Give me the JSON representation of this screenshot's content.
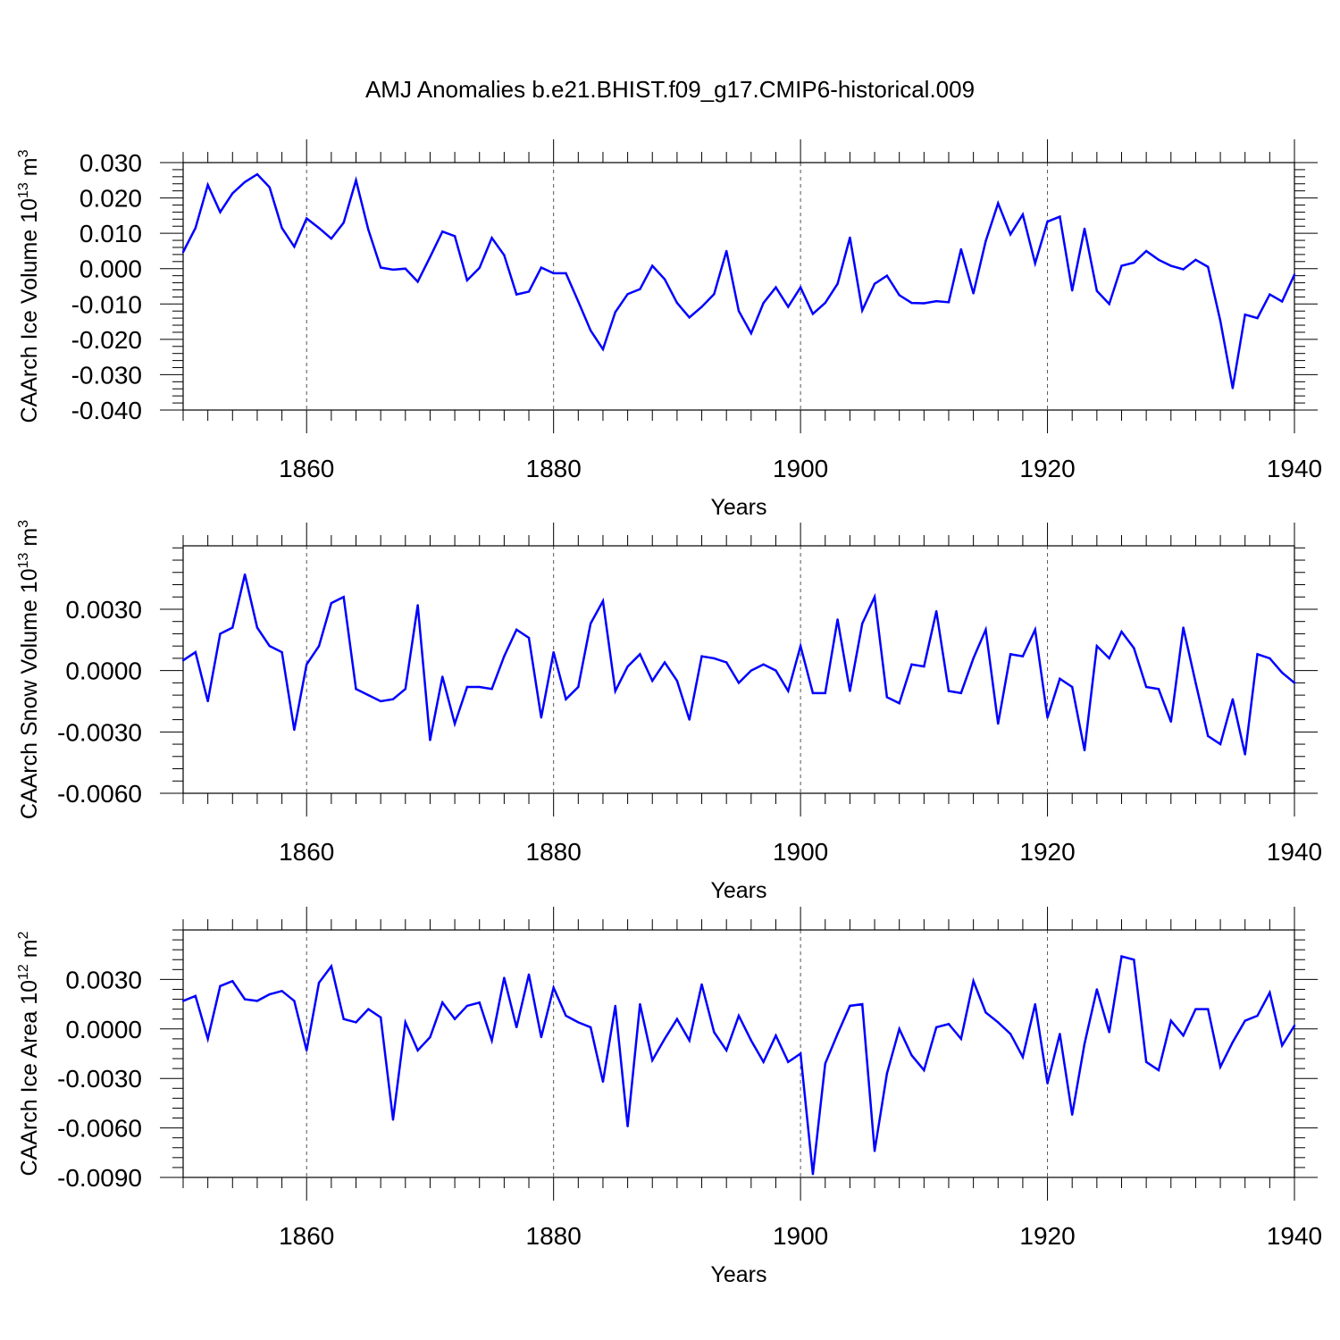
{
  "title": "AMJ Anomalies b.e21.BHIST.f09_g17.CMIP6-historical.009",
  "chart_data": [
    {
      "type": "line",
      "ylabel": "CAArch Ice Volume 10",
      "ylabel_exp": "13",
      "ylabel_unit": " m",
      "ylabel_unit_exp": "3",
      "xlabel": "Years",
      "xlim": [
        1850,
        1940
      ],
      "ylim": [
        -0.04,
        0.03
      ],
      "yticks": [
        "0.030",
        "0.020",
        "0.010",
        "0.000",
        "-0.010",
        "-0.020",
        "-0.030",
        "-0.040"
      ],
      "ytick_values": [
        0.03,
        0.02,
        0.01,
        0.0,
        -0.01,
        -0.02,
        -0.03,
        -0.04
      ],
      "xticks": [
        "1860",
        "1880",
        "1900",
        "1920",
        "1940"
      ],
      "xtick_values": [
        1860,
        1880,
        1900,
        1920,
        1940
      ],
      "grid_x": [
        1860,
        1880,
        1900,
        1920
      ],
      "series": [
        {
          "color": "#0000ff",
          "x_start": 1850,
          "values": [
            0.0047,
            0.0115,
            0.0237,
            0.016,
            0.0213,
            0.0245,
            0.0267,
            0.023,
            0.0115,
            0.0062,
            0.0142,
            0.0115,
            0.0085,
            0.013,
            0.025,
            0.011,
            0.0003,
            -0.0003,
            0.0,
            -0.0037,
            0.0033,
            0.0105,
            0.0092,
            -0.0033,
            0.0002,
            0.0087,
            0.0038,
            -0.0073,
            -0.0065,
            0.0003,
            -0.0013,
            -0.0013,
            -0.0093,
            -0.0175,
            -0.0228,
            -0.0123,
            -0.0072,
            -0.0058,
            0.0008,
            -0.003,
            -0.0097,
            -0.0138,
            -0.0108,
            -0.0072,
            0.005,
            -0.012,
            -0.0183,
            -0.0097,
            -0.0053,
            -0.0108,
            -0.0053,
            -0.0128,
            -0.0097,
            -0.0043,
            0.0088,
            -0.0118,
            -0.0043,
            -0.002,
            -0.0075,
            -0.0097,
            -0.0098,
            -0.0092,
            -0.0095,
            0.0055,
            -0.007,
            0.0078,
            0.0185,
            0.0097,
            0.0153,
            0.0015,
            0.0133,
            0.0147,
            -0.0062,
            0.0113,
            -0.0063,
            -0.01,
            0.0008,
            0.0017,
            0.005,
            0.0025,
            0.0008,
            -0.0002,
            0.0025,
            0.0005,
            -0.0148,
            -0.0338,
            -0.013,
            -0.014,
            -0.0073,
            -0.0093,
            -0.0017
          ]
        }
      ]
    },
    {
      "type": "line",
      "ylabel": "CAArch Snow Volume 10",
      "ylabel_exp": "13",
      "ylabel_unit": " m",
      "ylabel_unit_exp": "3",
      "xlabel": "Years",
      "xlim": [
        1850,
        1940
      ],
      "ylim": [
        -0.006,
        0.0061
      ],
      "yticks": [
        "0.0030",
        "0.0000",
        "-0.0030",
        "-0.0060"
      ],
      "ytick_values": [
        0.003,
        0.0,
        -0.003,
        -0.006
      ],
      "xticks": [
        "1860",
        "1880",
        "1900",
        "1920",
        "1940"
      ],
      "xtick_values": [
        1860,
        1880,
        1900,
        1920,
        1940
      ],
      "grid_x": [
        1860,
        1880,
        1900,
        1920
      ],
      "series": [
        {
          "color": "#0000ff",
          "x_start": 1850,
          "values": [
            0.0005,
            0.0009,
            -0.0015,
            0.0018,
            0.0021,
            0.0047,
            0.0021,
            0.0012,
            0.0009,
            -0.0029,
            0.0003,
            0.0012,
            0.0033,
            0.0036,
            -0.0009,
            -0.0012,
            -0.0015,
            -0.0014,
            -0.0009,
            0.0032,
            -0.0034,
            -0.0003,
            -0.0026,
            -0.0008,
            -0.0008,
            -0.0009,
            0.0007,
            0.002,
            0.0016,
            -0.0023,
            0.0009,
            -0.0014,
            -0.0008,
            0.0023,
            0.0034,
            -0.001,
            0.0002,
            0.0008,
            -0.0005,
            0.0004,
            -0.0005,
            -0.0024,
            0.0007,
            0.0006,
            0.0004,
            -0.0006,
            0.0,
            0.0003,
            0.0,
            -0.001,
            0.0012,
            -0.0011,
            -0.0011,
            0.0025,
            -0.001,
            0.0023,
            0.0036,
            -0.0013,
            -0.0016,
            0.0003,
            0.0002,
            0.0029,
            -0.001,
            -0.0011,
            0.0006,
            0.002,
            -0.0026,
            0.0008,
            0.0007,
            0.002,
            -0.0023,
            -0.0004,
            -0.0008,
            -0.0039,
            0.0012,
            0.0006,
            0.0019,
            0.0011,
            -0.0008,
            -0.0009,
            -0.0025,
            0.0021,
            -0.0006,
            -0.0032,
            -0.0036,
            -0.0014,
            -0.0041,
            0.0008,
            0.0006,
            -0.0001,
            -0.0006
          ]
        }
      ]
    },
    {
      "type": "line",
      "ylabel": "CAArch Ice Area 10",
      "ylabel_exp": "12",
      "ylabel_unit": " m",
      "ylabel_unit_exp": "2",
      "xlabel": "Years",
      "xlim": [
        1850,
        1940
      ],
      "ylim": [
        -0.009,
        0.006
      ],
      "yticks": [
        "0.0030",
        "0.0000",
        "-0.0030",
        "-0.0060",
        "-0.0090"
      ],
      "ytick_values": [
        0.003,
        0.0,
        -0.003,
        -0.006,
        -0.009
      ],
      "xticks": [
        "1860",
        "1880",
        "1900",
        "1920",
        "1940"
      ],
      "xtick_values": [
        1860,
        1880,
        1900,
        1920,
        1940
      ],
      "grid_x": [
        1860,
        1880,
        1900,
        1920
      ],
      "series": [
        {
          "color": "#0000ff",
          "x_start": 1850,
          "values": [
            0.0017,
            0.002,
            -0.0006,
            0.0026,
            0.0029,
            0.0018,
            0.0017,
            0.0021,
            0.0023,
            0.0017,
            -0.0013,
            0.0028,
            0.0038,
            0.0006,
            0.0004,
            0.0012,
            0.0007,
            -0.0055,
            0.0004,
            -0.0013,
            -0.0005,
            0.0016,
            0.0006,
            0.0014,
            0.0016,
            -0.0007,
            0.0031,
            0.0001,
            0.0033,
            -0.0005,
            0.0025,
            0.0008,
            0.0004,
            0.0001,
            -0.0032,
            0.0014,
            -0.0059,
            0.0015,
            -0.0019,
            -0.0006,
            0.0006,
            -0.0007,
            0.0027,
            -0.0002,
            -0.0013,
            0.0008,
            -0.0007,
            -0.002,
            -0.0004,
            -0.002,
            -0.0015,
            -0.0088,
            -0.0021,
            -0.0003,
            0.0014,
            0.0015,
            -0.0074,
            -0.0027,
            0.0,
            -0.0016,
            -0.0025,
            0.0001,
            0.0003,
            -0.0006,
            0.0029,
            0.001,
            0.0004,
            -0.0003,
            -0.0017,
            0.0015,
            -0.0033,
            -0.0003,
            -0.0052,
            -0.0009,
            0.0024,
            -0.0002,
            0.0044,
            0.0042,
            -0.002,
            -0.0025,
            0.0005,
            -0.0004,
            0.0012,
            0.0012,
            -0.0023,
            -0.0008,
            0.0005,
            0.0008,
            0.0022,
            -0.001,
            0.0002
          ]
        }
      ]
    }
  ]
}
